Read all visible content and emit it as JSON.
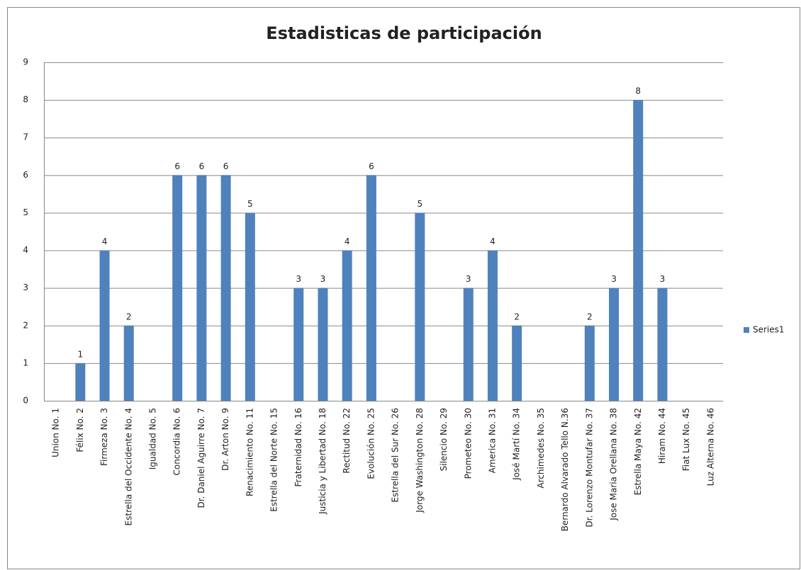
{
  "chart_data": {
    "type": "bar",
    "title": "Estadisticas de participación",
    "categories": [
      "Union No. 1",
      "Félix No. 2",
      "Firmeza No. 3",
      "Estrella del Occidente No. 4",
      "Igualdad No. 5",
      "Concordia No. 6",
      "Dr. Daniel Aguirre No. 7",
      "Dr. Arton No. 9",
      "Renacimiento No. 11",
      "Estrella del Norte No. 15",
      "Fraternidad No. 16",
      "Justicia y Libertad No. 18",
      "Rectitud No. 22",
      "Evolución No. 25",
      "Estrella del Sur No. 26",
      "Jorge Washington No. 28",
      "Silencio No. 29",
      "Prometeo No. 30",
      "America No. 31",
      "José Martí No. 34",
      "Archimedes No. 35",
      "Bernardo Alvarado Tello N.36",
      "Dr. Lorenzo Montufar No. 37",
      "Jose Maria Orellana No. 38",
      "Estrella Maya No. 42",
      "Hiram No. 44",
      "Fiat Lux No. 45",
      "Luz Alterna No. 46"
    ],
    "series": [
      {
        "name": "Series1",
        "color": "#4f81bd",
        "values": [
          null,
          1,
          4,
          2,
          null,
          6,
          6,
          6,
          5,
          null,
          3,
          3,
          4,
          6,
          null,
          5,
          null,
          3,
          4,
          2,
          null,
          null,
          2,
          3,
          8,
          3,
          null,
          null
        ]
      }
    ],
    "ylim": [
      0,
      9
    ],
    "yticks": [
      0,
      1,
      2,
      3,
      4,
      5,
      6,
      7,
      8,
      9
    ],
    "grid": true,
    "legend": "right"
  }
}
